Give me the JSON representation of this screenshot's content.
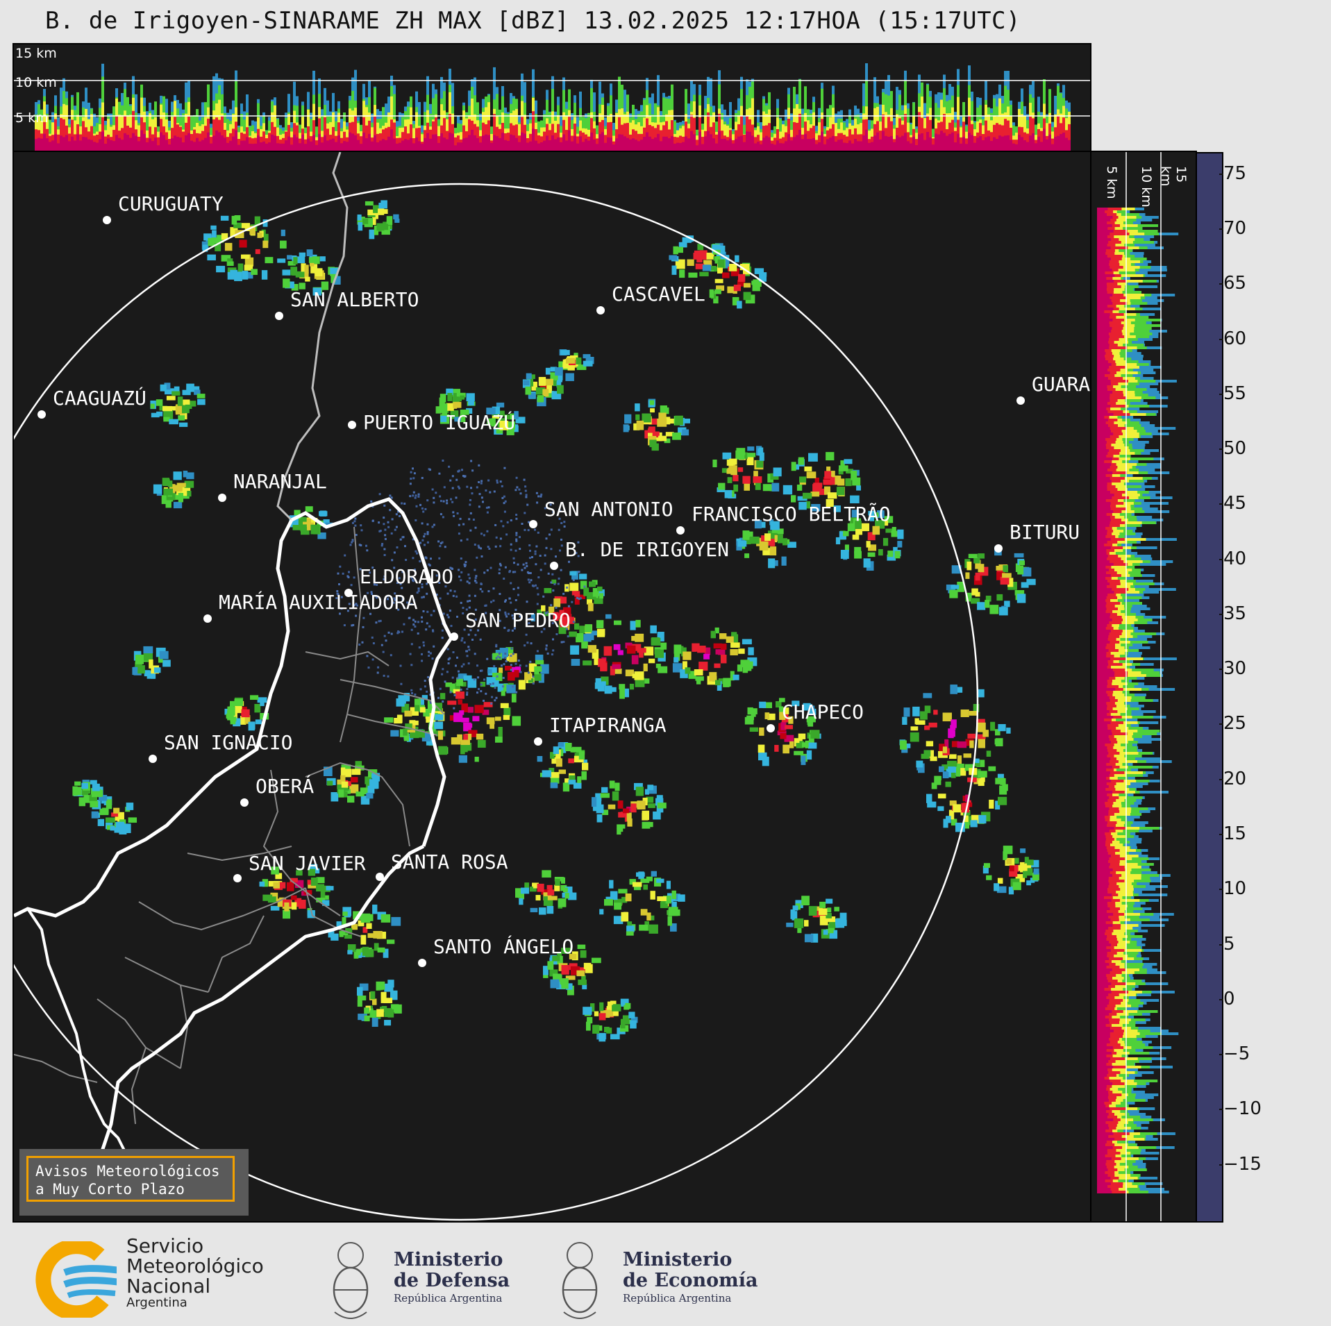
{
  "title": "B. de Irigoyen-SINARAME ZH MAX [dBZ] 13.02.2025 12:17HOA (15:17UTC)",
  "top_panel": {
    "height_labels": [
      "15 km",
      "10 km",
      "5 km"
    ]
  },
  "side_panel": {
    "height_labels": [
      "5 km",
      "10 km",
      "15 km"
    ]
  },
  "colorbar": {
    "ticks": [
      "75",
      "70",
      "65",
      "60",
      "55",
      "50",
      "45",
      "40",
      "35",
      "30",
      "25",
      "20",
      "15",
      "10",
      "5",
      "0",
      "−5",
      "−10",
      "−15"
    ],
    "range": [
      -20,
      77
    ],
    "stops": [
      {
        "from": -20,
        "color": "#3b3d6b"
      },
      {
        "from": -10,
        "color": "#3f4d80"
      },
      {
        "from": 0,
        "color": "#3a6ea0"
      },
      {
        "from": 10,
        "color": "#2f8fc4"
      },
      {
        "from": 15,
        "color": "#35b4de"
      },
      {
        "from": 18,
        "color": "#4fd03a"
      },
      {
        "from": 22,
        "color": "#3aa82a"
      },
      {
        "from": 26,
        "color": "#2a7a1e"
      },
      {
        "from": 30,
        "color": "#f0f03a"
      },
      {
        "from": 34,
        "color": "#d8c830"
      },
      {
        "from": 38,
        "color": "#d89a20"
      },
      {
        "from": 42,
        "color": "#e82030"
      },
      {
        "from": 46,
        "color": "#c00010"
      },
      {
        "from": 49,
        "color": "#900010"
      },
      {
        "from": 50,
        "color": "#c80060"
      },
      {
        "from": 53,
        "color": "#e000c8"
      },
      {
        "from": 56,
        "color": "#a000a0"
      },
      {
        "from": 59,
        "color": "#ffffff"
      },
      {
        "from": 61,
        "color": "#d8f0e8"
      },
      {
        "from": 65,
        "color": "#a8e6d0"
      },
      {
        "from": 70,
        "color": "#7ed8c0"
      }
    ]
  },
  "cities": [
    {
      "name": "CURUGUATY"
    },
    {
      "name": "SAN ALBERTO"
    },
    {
      "name": "CASCAVEL"
    },
    {
      "name": "CAAGUAZÚ"
    },
    {
      "name": "GUARA"
    },
    {
      "name": "PUERTO IGUAZÚ"
    },
    {
      "name": "NARANJAL"
    },
    {
      "name": "SAN ANTONIO"
    },
    {
      "name": "FRANCISCO BELTRÃO"
    },
    {
      "name": "BITURU"
    },
    {
      "name": "B. DE IRIGOYEN"
    },
    {
      "name": "ELDORADO"
    },
    {
      "name": "MARÍA AUXILIADORA"
    },
    {
      "name": "SAN PEDRO"
    },
    {
      "name": "CHAPECO"
    },
    {
      "name": "ITAPIRANGA"
    },
    {
      "name": "SAN IGNACIO"
    },
    {
      "name": "OBERÁ"
    },
    {
      "name": "SAN JAVIER"
    },
    {
      "name": "SANTA ROSA"
    },
    {
      "name": "SANTO ÁNGELO"
    }
  ],
  "notice": {
    "line1": "Avisos Meteorológicos",
    "line2": "a Muy Corto Plazo"
  },
  "logos": {
    "smn_line1": "Servicio",
    "smn_line2": "Meteorológico",
    "smn_line3": "Nacional",
    "smn_line4": "Argentina",
    "defensa_line1": "Ministerio",
    "defensa_line2": "de Defensa",
    "defensa_line3": "República Argentina",
    "economia_line1": "Ministerio",
    "economia_line2": "de Economía",
    "economia_line3": "República Argentina"
  }
}
